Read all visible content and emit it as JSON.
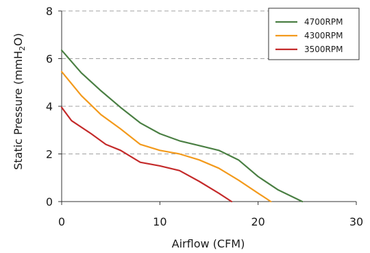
{
  "chart_data": {
    "type": "line",
    "title": "",
    "xlabel": "Airflow (CFM)",
    "ylabel_main": "Static Pressure (mmH",
    "ylabel_sub": "2",
    "ylabel_end": "O)",
    "xlim": [
      0,
      30
    ],
    "ylim": [
      0,
      8
    ],
    "xticks": [
      0,
      10,
      20,
      30
    ],
    "yticks": [
      0,
      2,
      4,
      6,
      8
    ],
    "xtick_labels": [
      "0",
      "10",
      "20",
      "30"
    ],
    "ytick_labels": [
      "0",
      "2",
      "4",
      "6",
      "8"
    ],
    "grid": "horizontal-dashed",
    "legend_position": "top-right",
    "series": [
      {
        "name": "4700RPM",
        "color": "#4a7f43",
        "points": [
          [
            0,
            6.35
          ],
          [
            2,
            5.4
          ],
          [
            4,
            4.65
          ],
          [
            6,
            3.95
          ],
          [
            8,
            3.3
          ],
          [
            10,
            2.85
          ],
          [
            12,
            2.55
          ],
          [
            14,
            2.35
          ],
          [
            16,
            2.15
          ],
          [
            18,
            1.75
          ],
          [
            20,
            1.05
          ],
          [
            22,
            0.5
          ],
          [
            24.5,
            0.0
          ]
        ]
      },
      {
        "name": "4300RPM",
        "color": "#f39a1c",
        "points": [
          [
            0,
            5.45
          ],
          [
            2,
            4.45
          ],
          [
            4,
            3.65
          ],
          [
            6,
            3.05
          ],
          [
            8,
            2.4
          ],
          [
            10,
            2.15
          ],
          [
            12,
            2.0
          ],
          [
            14,
            1.75
          ],
          [
            16,
            1.4
          ],
          [
            18,
            0.9
          ],
          [
            20,
            0.35
          ],
          [
            21.3,
            0.0
          ]
        ]
      },
      {
        "name": "3500RPM",
        "color": "#c42a2a",
        "points": [
          [
            0,
            3.95
          ],
          [
            1,
            3.4
          ],
          [
            3,
            2.85
          ],
          [
            4.5,
            2.4
          ],
          [
            6,
            2.15
          ],
          [
            8,
            1.65
          ],
          [
            10,
            1.5
          ],
          [
            12,
            1.3
          ],
          [
            14,
            0.85
          ],
          [
            16,
            0.35
          ],
          [
            17.3,
            0.0
          ]
        ]
      }
    ]
  }
}
